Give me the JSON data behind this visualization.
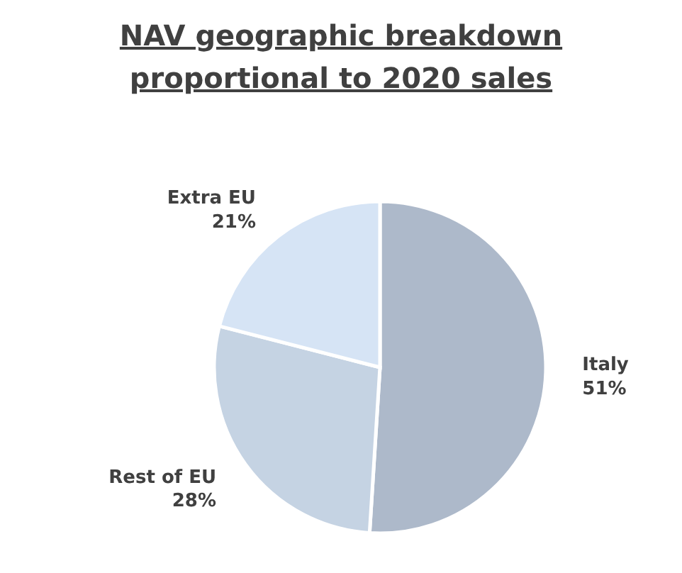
{
  "chart_data": {
    "type": "pie",
    "title": "NAV geographic breakdown proportional to 2020 sales",
    "categories": [
      "Italy",
      "Rest of EU",
      "Extra EU"
    ],
    "values": [
      51,
      28,
      21
    ],
    "colors": [
      "#adb9ca",
      "#c5d3e3",
      "#d6e4f5"
    ],
    "value_labels": [
      "51%",
      "28%",
      "21%"
    ]
  }
}
